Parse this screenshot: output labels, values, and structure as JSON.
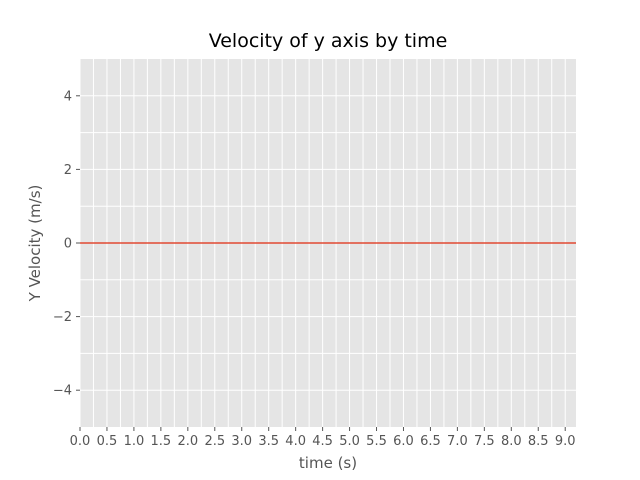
{
  "chart_data": {
    "type": "line",
    "title": "Velocity of y axis by time",
    "xlabel": "time (s)",
    "ylabel": "Y Velocity (m/s)",
    "xlim": [
      0,
      9.2
    ],
    "ylim": [
      -5,
      5
    ],
    "xticks": [
      0.0,
      0.5,
      1.0,
      1.5,
      2.0,
      2.5,
      3.0,
      3.5,
      4.0,
      4.5,
      5.0,
      5.5,
      6.0,
      6.5,
      7.0,
      7.5,
      8.0,
      8.5,
      9.0
    ],
    "xtick_labels": [
      "0.0",
      "0.5",
      "1.0",
      "1.5",
      "2.0",
      "2.5",
      "3.0",
      "3.5",
      "4.0",
      "4.5",
      "5.0",
      "5.5",
      "6.0",
      "6.5",
      "7.0",
      "7.5",
      "8.0",
      "8.5",
      "9.0"
    ],
    "yticks": [
      -4,
      -2,
      0,
      2,
      4
    ],
    "ytick_labels": [
      "−4",
      "−2",
      "0",
      "2",
      "4"
    ],
    "grid": true,
    "series": [
      {
        "x": [
          0.0,
          9.2
        ],
        "y": [
          0,
          0
        ],
        "color": "#e24a33"
      }
    ],
    "colors": {
      "axes_bg": "#e5e5e5",
      "grid": "#ffffff",
      "tick": "#555555"
    }
  }
}
